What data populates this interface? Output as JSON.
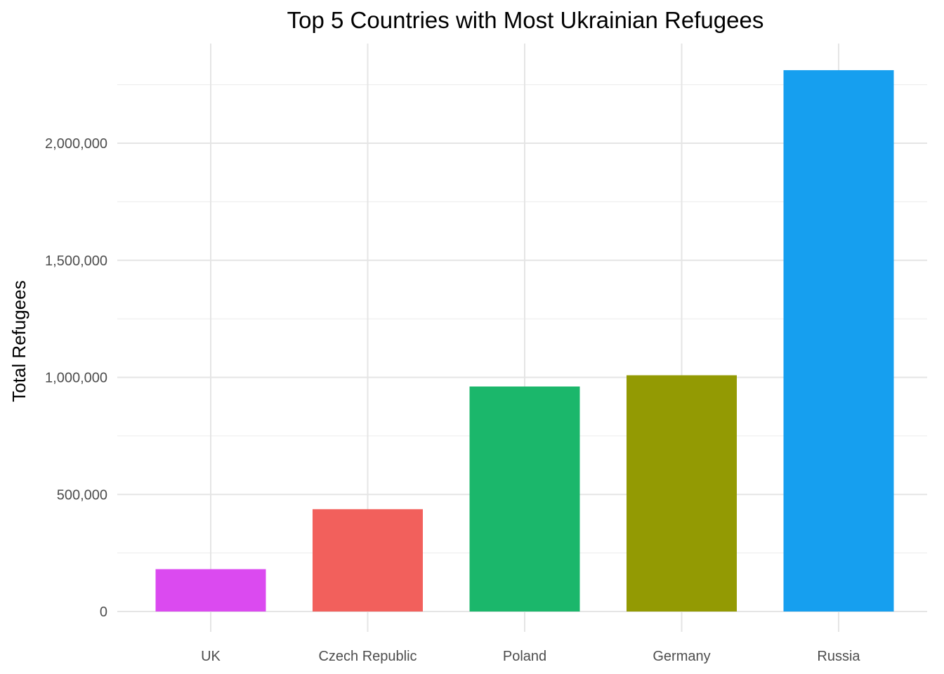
{
  "chart_data": {
    "type": "bar",
    "title": "Top 5 Countries with Most Ukrainian Refugees",
    "xlabel": "",
    "ylabel": "Total Refugees",
    "categories": [
      "UK",
      "Czech Republic",
      "Poland",
      "Germany",
      "Russia"
    ],
    "values": [
      181000,
      437000,
      961000,
      1009000,
      2312000
    ],
    "colors": [
      "#DB4AF0",
      "#F2605C",
      "#1BB76B",
      "#939A03",
      "#169FEF"
    ],
    "ylim": [
      0,
      2300000
    ],
    "yticks": [
      0,
      500000,
      1000000,
      1500000,
      2000000
    ],
    "ytick_labels": [
      "0",
      "500,000",
      "1,000,000",
      "1,500,000",
      "2,000,000"
    ],
    "grid": true,
    "legend": "none"
  }
}
